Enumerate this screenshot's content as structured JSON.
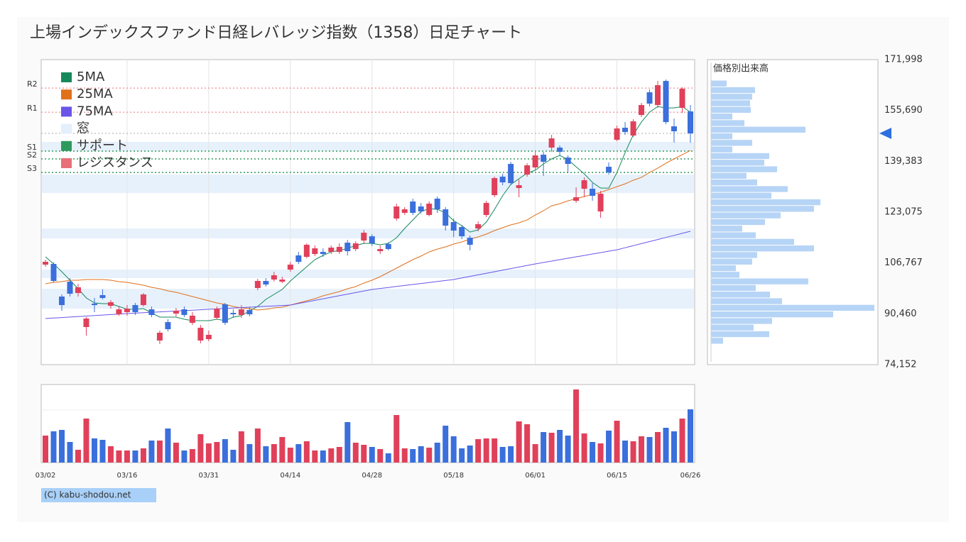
{
  "chart_data": [
    {
      "type": "candlestick",
      "title": "上場インデックスファンド日経レバレッジ指数（1358）日足チャート",
      "categories": [
        "03/02",
        null,
        null,
        null,
        null,
        null,
        null,
        null,
        null,
        null,
        "03/16",
        null,
        null,
        null,
        null,
        null,
        null,
        null,
        null,
        null,
        "03/31",
        null,
        null,
        null,
        null,
        null,
        null,
        null,
        null,
        null,
        "04/14",
        null,
        null,
        null,
        null,
        null,
        null,
        null,
        null,
        null,
        "04/28",
        null,
        null,
        null,
        null,
        null,
        null,
        null,
        null,
        null,
        "05/18",
        null,
        null,
        null,
        null,
        null,
        null,
        null,
        null,
        null,
        "06/01",
        null,
        null,
        null,
        null,
        null,
        null,
        null,
        null,
        null,
        "06/15",
        null,
        null,
        null,
        null,
        null,
        null,
        null,
        null,
        "06/26"
      ],
      "open": [
        106230,
        106460,
        95990,
        100770,
        97130,
        86210,
        93720,
        96450,
        93030,
        90300,
        90990,
        93260,
        93260,
        91900,
        81890,
        87800,
        90530,
        91900,
        87570,
        81890,
        82340,
        89170,
        93490,
        90760,
        90080,
        91670,
        98720,
        100990,
        101450,
        100770,
        104640,
        109190,
        108730,
        109640,
        110320,
        110320,
        110320,
        113280,
        111230,
        113960,
        115330,
        110550,
        112830,
        121020,
        122840,
        126480,
        124880,
        122150,
        127390,
        123970,
        119880,
        118290,
        114870,
        117830,
        122150,
        128520,
        134440,
        138530,
        130800,
        135120,
        137400,
        141490,
        143770,
        143770,
        140580,
        126700,
        130570,
        130570,
        123290,
        137620,
        146270,
        150140,
        147630,
        154230,
        161510,
        157420,
        165150,
        150590,
        156510,
        155370
      ],
      "high": [
        107820,
        106910,
        96670,
        101900,
        100090,
        89390,
        95540,
        98270,
        94850,
        92810,
        93260,
        93940,
        97130,
        92810,
        85070,
        88710,
        92350,
        92810,
        90990,
        86890,
        85070,
        92810,
        93940,
        91900,
        93260,
        92580,
        101680,
        101900,
        103950,
        102360,
        107140,
        110320,
        113050,
        112370,
        111460,
        112370,
        113050,
        114190,
        113740,
        117380,
        116010,
        112370,
        113510,
        125790,
        124660,
        127390,
        126020,
        126480,
        128070,
        124660,
        121020,
        118970,
        115560,
        120110,
        126700,
        134440,
        135350,
        139220,
        133530,
        138760,
        142400,
        142400,
        147860,
        144450,
        141260,
        131030,
        134210,
        132390,
        129890,
        138990,
        150820,
        151960,
        152870,
        158100,
        162420,
        165150,
        165610,
        153090,
        163100,
        157420
      ],
      "low": [
        105550,
        100540,
        91440,
        95990,
        95990,
        83480,
        90990,
        95080,
        92120,
        89850,
        89850,
        90080,
        92810,
        89390,
        80750,
        84840,
        89620,
        89390,
        86890,
        80980,
        81660,
        88710,
        86890,
        89170,
        89170,
        89620,
        98040,
        99180,
        100770,
        100310,
        103950,
        106460,
        108280,
        108960,
        108730,
        109640,
        109640,
        109190,
        110550,
        112830,
        112140,
        109640,
        110780,
        120330,
        122150,
        122150,
        122610,
        121700,
        122840,
        117150,
        115100,
        114420,
        110780,
        116920,
        121470,
        127840,
        131710,
        131710,
        127840,
        134440,
        136710,
        134670,
        142400,
        141040,
        135580,
        126020,
        127840,
        126700,
        121240,
        135120,
        145810,
        147860,
        147180,
        153550,
        156960,
        156510,
        151270,
        145360,
        154910,
        145360
      ],
      "close": [
        107140,
        100990,
        93260,
        96900,
        98950,
        88940,
        93260,
        95540,
        94170,
        91900,
        92120,
        90990,
        96670,
        90080,
        84390,
        85530,
        91440,
        90080,
        89850,
        85980,
        83710,
        92120,
        87570,
        90300,
        91900,
        90300,
        100990,
        99860,
        102820,
        101450,
        106230,
        107140,
        112600,
        111460,
        109640,
        111690,
        111920,
        110550,
        113050,
        116470,
        113050,
        111230,
        111230,
        124880,
        123970,
        122840,
        123290,
        125790,
        123970,
        118740,
        117150,
        115330,
        112600,
        119200,
        126020,
        133980,
        132620,
        132390,
        131710,
        138080,
        141260,
        139220,
        146720,
        142400,
        138530,
        127840,
        133300,
        128300,
        128980,
        135800,
        149910,
        148770,
        152180,
        157420,
        157870,
        163790,
        151960,
        149000,
        162650,
        148320
      ],
      "up_color": "#e0405a",
      "down_color": "#3a6fdc",
      "ma": [
        {
          "name": "5MA",
          "color": "#15895a",
          "values": [
            108730,
            106460,
            103950,
            101220,
            98490,
            95540,
            93940,
            93720,
            93720,
            92810,
            91900,
            91900,
            92120,
            90760,
            89390,
            89390,
            89390,
            88710,
            88260,
            88260,
            88260,
            88710,
            88260,
            89390,
            89850,
            91440,
            92810,
            95080,
            96670,
            98270,
            100990,
            103270,
            105550,
            107820,
            109190,
            110320,
            110780,
            111460,
            112370,
            113050,
            113050,
            112600,
            113050,
            114870,
            117830,
            120560,
            123290,
            124200,
            123970,
            122840,
            120330,
            118740,
            116690,
            117380,
            119880,
            123970,
            128300,
            131940,
            133760,
            135580,
            136490,
            138530,
            140130,
            141260,
            139900,
            137620,
            135350,
            132620,
            130800,
            130800,
            135800,
            142170,
            147860,
            151960,
            155140,
            156960,
            156510,
            156510,
            156960,
            155140
          ]
        },
        {
          "name": "25MA",
          "color": "#e0701a",
          "values": [
            100090,
            100540,
            100770,
            101220,
            101220,
            101450,
            101450,
            101450,
            101220,
            100770,
            100540,
            100090,
            99630,
            98950,
            98490,
            97810,
            97360,
            96670,
            95990,
            95310,
            94630,
            93940,
            93490,
            92810,
            92350,
            92120,
            91670,
            91900,
            92350,
            92580,
            93260,
            93940,
            94630,
            95310,
            96220,
            96900,
            97580,
            98490,
            99180,
            100310,
            101220,
            102360,
            103730,
            105090,
            106460,
            107820,
            108960,
            110320,
            111230,
            111920,
            112830,
            113510,
            114420,
            115100,
            116010,
            117150,
            118060,
            118970,
            119650,
            120560,
            122150,
            123520,
            125110,
            125790,
            126700,
            127390,
            128070,
            128750,
            129430,
            130340,
            131250,
            132160,
            133300,
            134210,
            135800,
            137170,
            138760,
            140130,
            141490,
            142860
          ]
        },
        {
          "name": "75MA",
          "color": "#6a55e8",
          "values": [
            88940,
            89100,
            89260,
            89420,
            89580,
            89740,
            89900,
            90050,
            90210,
            90370,
            90530,
            90670,
            90800,
            90940,
            91080,
            91220,
            91350,
            91490,
            91630,
            91760,
            91900,
            92040,
            92170,
            92310,
            92440,
            92580,
            92720,
            92850,
            92990,
            93120,
            93260,
            93760,
            94260,
            94760,
            95260,
            95770,
            96270,
            96770,
            97270,
            97770,
            98270,
            98590,
            98910,
            99220,
            99540,
            99860,
            100180,
            100500,
            100810,
            101130,
            101450,
            101950,
            102450,
            102950,
            103450,
            103960,
            104460,
            104960,
            105460,
            105960,
            106460,
            106910,
            107370,
            107820,
            108280,
            108730,
            109180,
            109640,
            110090,
            110550,
            111000,
            111660,
            112320,
            112970,
            113630,
            114290,
            114950,
            115610,
            116260,
            116920
          ]
        }
      ],
      "windows": {
        "name": "窓",
        "color": "#e3effb",
        "ranges": [
          [
            142630,
            145590
          ],
          [
            132850,
            135120
          ],
          [
            129210,
            132850
          ],
          [
            114650,
            117830
          ],
          [
            101900,
            104640
          ],
          [
            92120,
            98490
          ]
        ]
      },
      "support": {
        "name": "サポート",
        "color": "#2f9a5e",
        "levels": [
          {
            "label": "S1",
            "value": 142630
          },
          {
            "label": "S2",
            "value": 140130
          },
          {
            "label": "S3",
            "value": 135800
          }
        ]
      },
      "resistance": {
        "name": "レジスタンス",
        "color": "#e87078",
        "levels": [
          {
            "label": "R2",
            "value": 162880
          },
          {
            "label": "R1",
            "value": 155140
          }
        ]
      },
      "ylim": [
        74152,
        171998
      ],
      "yticks": [
        {
          "value": 171998,
          "label": "171,998"
        },
        {
          "value": 155690,
          "label": "155,690"
        },
        {
          "value": 139383,
          "label": "139,383"
        },
        {
          "value": 123075,
          "label": "123,075"
        },
        {
          "value": 106767,
          "label": "106,767"
        },
        {
          "value": 90460,
          "label": "90,460"
        },
        {
          "value": 74152,
          "label": "74,152"
        }
      ],
      "grid": true,
      "legend": "top-left"
    },
    {
      "type": "bar",
      "values": [
        38,
        44,
        46,
        29,
        18,
        62,
        34,
        32,
        23,
        17,
        17,
        17,
        20,
        31,
        31,
        48,
        28,
        17,
        19,
        40,
        27,
        29,
        33,
        18,
        44,
        26,
        48,
        23,
        26,
        36,
        21,
        26,
        30,
        17,
        17,
        20,
        22,
        57,
        28,
        25,
        22,
        19,
        13,
        67,
        20,
        19,
        23,
        21,
        28,
        52,
        37,
        20,
        24,
        33,
        34,
        34,
        22,
        23,
        58,
        54,
        26,
        43,
        42,
        46,
        38,
        103,
        41,
        29,
        27,
        45,
        59,
        31,
        30,
        37,
        36,
        43,
        49,
        44,
        62,
        75
      ],
      "ylim": [
        0,
        110
      ]
    },
    {
      "type": "hbar-histogram",
      "title": "価格別出来高",
      "color": "#b6d4f6",
      "bins": [
        80750,
        82870,
        84980,
        87100,
        89210,
        91330,
        93450,
        95560,
        97680,
        99790,
        101910,
        104030,
        106140,
        108260,
        110370,
        112490,
        114610,
        116720,
        118840,
        120950,
        123070,
        125190,
        127300,
        129420,
        131530,
        133650,
        135770,
        137880,
        140000,
        142110,
        144230,
        146350,
        148460,
        150580,
        152690,
        154810,
        156930,
        159040,
        161160,
        163270,
        165390
      ],
      "values": [
        17,
        82,
        60,
        86,
        172,
        230,
        100,
        83,
        63,
        137,
        40,
        35,
        58,
        65,
        145,
        117,
        63,
        44,
        76,
        98,
        145,
        154,
        85,
        108,
        65,
        50,
        93,
        75,
        82,
        30,
        58,
        30,
        133,
        47,
        30,
        56,
        55,
        58,
        62,
        22
      ],
      "xlim": [
        0,
        235
      ]
    }
  ]
}
